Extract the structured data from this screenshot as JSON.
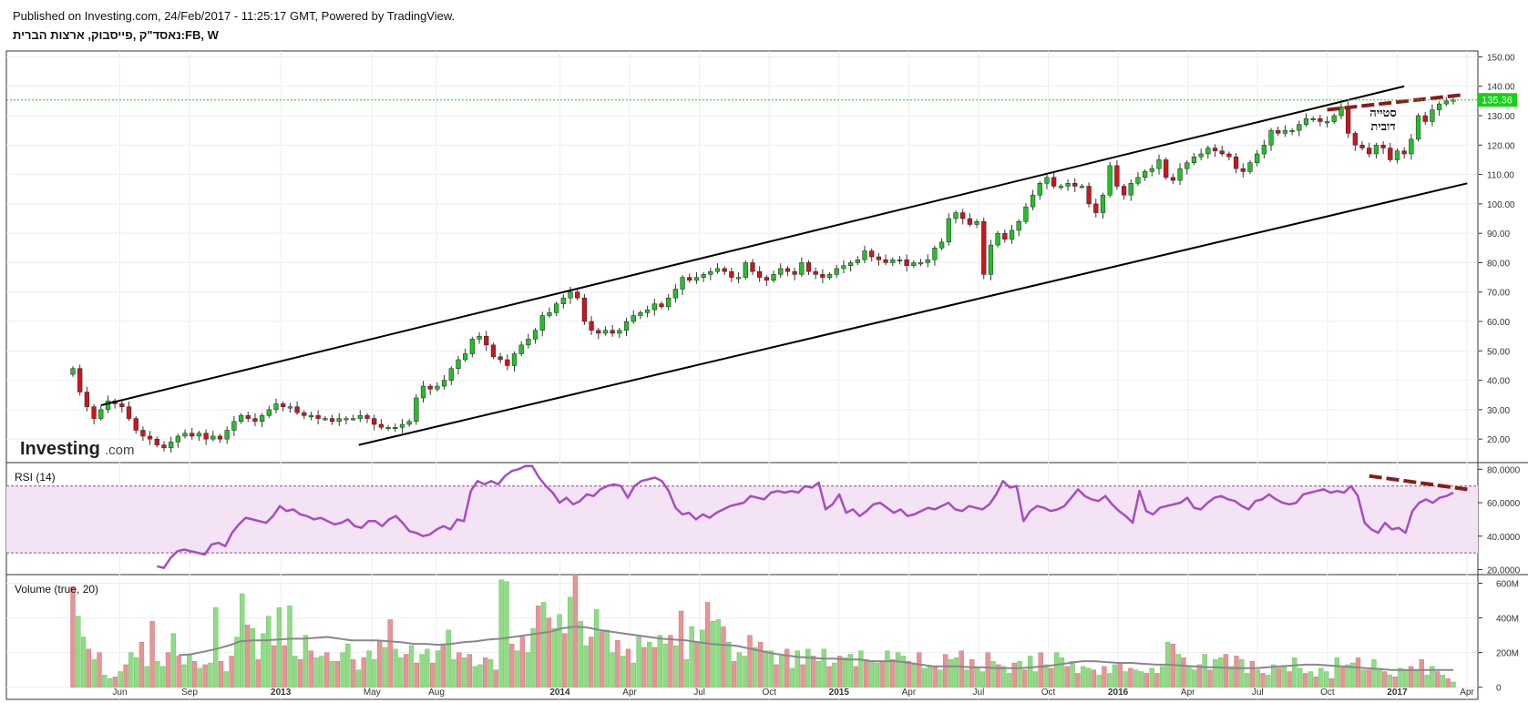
{
  "header": {
    "published": "Published on Investing.com, 24/Feb/2017 - 11:25:17 GMT, Powered by TradingView.",
    "symbol": "נאסד\"ק ,פייסבוק, ארצות הברית:FB, W"
  },
  "logo": {
    "brand": "Investing",
    "suffix": ".com"
  },
  "colors": {
    "up": "#22c12a",
    "down": "#d0141d",
    "wick": "#333333",
    "rsi": "#a64dbf",
    "rsi_band": "#f3e3f4",
    "vol_up": "#8fdc85",
    "vol_down": "#e49696",
    "vol_ma": "#888888",
    "price_tag": "#17d117",
    "divergence": "#8b1b1b"
  },
  "chart_data": {
    "type": "candlestick",
    "price_panel": {
      "ylim": [
        12,
        152
      ],
      "yticks": [
        "150.00",
        "140.00",
        "130.00",
        "120.00",
        "110.00",
        "100.00",
        "90.00",
        "80.00",
        "70.00",
        "60.00",
        "50.00",
        "40.00",
        "30.00",
        "20.00"
      ],
      "last_price": "135.36",
      "annotation_line1": "סטייה",
      "annotation_line2": "דובית",
      "closes": [
        44,
        36,
        31,
        27,
        30,
        33,
        32,
        31,
        27,
        23,
        21,
        20,
        18,
        17,
        19,
        21,
        22,
        21,
        22,
        20,
        21,
        20,
        23,
        26,
        28,
        27,
        26,
        28,
        30,
        32,
        31,
        31,
        29,
        28,
        28,
        27,
        27,
        26,
        27,
        27,
        27,
        28,
        27,
        25,
        24,
        24,
        24,
        25,
        26,
        34,
        38,
        37,
        38,
        40,
        44,
        47,
        49,
        54,
        55,
        52,
        48,
        47,
        45,
        49,
        52,
        54,
        57,
        62,
        63,
        66,
        68,
        70,
        68,
        60,
        57,
        56,
        57,
        56,
        57,
        60,
        62,
        63,
        64,
        66,
        65,
        68,
        71,
        75,
        74,
        75,
        76,
        77,
        78,
        77,
        75,
        75,
        80,
        77,
        75,
        74,
        76,
        78,
        77,
        76,
        80,
        77,
        76,
        75,
        76,
        78,
        79,
        80,
        81,
        84,
        82,
        81,
        80,
        81,
        81,
        79,
        80,
        80,
        81,
        85,
        87,
        95,
        97,
        95,
        93,
        94,
        76,
        86,
        90,
        88,
        91,
        94,
        99,
        103,
        107,
        109,
        106,
        106,
        107,
        106,
        106,
        100,
        97,
        103,
        113,
        106,
        103,
        107,
        109,
        111,
        112,
        115,
        109,
        108,
        112,
        114,
        116,
        117,
        119,
        118,
        117,
        116,
        112,
        111,
        114,
        117,
        120,
        125,
        124,
        125,
        125,
        127,
        129,
        129,
        128,
        128,
        130,
        133,
        124,
        120,
        119,
        117,
        120,
        119,
        115,
        118,
        117,
        122,
        130,
        128,
        132,
        134,
        135,
        135.36
      ],
      "channel_upper": [
        {
          "i": 4,
          "v": 31.5
        },
        {
          "i": 190,
          "v": 140
        }
      ],
      "channel_lower": [
        {
          "i": 46,
          "v": 18
        },
        {
          "i": 199,
          "v": 107
        }
      ],
      "divergence_line": [
        {
          "i": 179,
          "v": 132
        },
        {
          "i": 198,
          "v": 137
        }
      ]
    },
    "rsi_panel": {
      "title": "RSI (14)",
      "ylim": [
        17,
        84
      ],
      "yticks": [
        "80.0000",
        "60.0000",
        "40.0000",
        "20.0000"
      ],
      "band": [
        30,
        70
      ],
      "start_index": 12,
      "values": [
        22,
        21,
        27,
        31,
        32,
        31,
        30,
        29,
        35,
        36,
        34,
        42,
        47,
        51,
        50,
        49,
        48,
        52,
        58,
        55,
        56,
        53,
        52,
        50,
        51,
        49,
        47,
        48,
        50,
        46,
        45,
        49,
        49,
        46,
        50,
        52,
        48,
        43,
        42,
        40,
        41,
        44,
        46,
        44,
        50,
        49,
        67,
        73,
        71,
        73,
        71,
        76,
        79,
        80,
        82,
        82,
        75,
        70,
        66,
        60,
        63,
        59,
        61,
        65,
        64,
        68,
        70,
        71,
        70,
        63,
        70,
        73,
        74,
        75,
        73,
        67,
        57,
        53,
        54,
        50,
        53,
        51,
        54,
        56,
        58,
        59,
        60,
        64,
        63,
        62,
        66,
        67,
        66,
        67,
        66,
        70,
        69,
        72,
        56,
        59,
        65,
        54,
        56,
        52,
        55,
        59,
        60,
        57,
        54,
        56,
        52,
        53,
        55,
        57,
        56,
        58,
        60,
        56,
        55,
        58,
        57,
        56,
        59,
        65,
        73,
        69,
        70,
        49,
        55,
        58,
        57,
        55,
        56,
        58,
        63,
        68,
        64,
        62,
        61,
        64,
        59,
        55,
        52,
        48,
        67,
        55,
        53,
        57,
        58,
        59,
        60,
        63,
        57,
        56,
        60,
        63,
        64,
        62,
        61,
        58,
        56,
        61,
        62,
        65,
        62,
        60,
        59,
        60,
        65,
        66,
        67,
        68,
        66,
        67,
        66,
        70,
        64,
        48,
        44,
        42,
        48,
        44,
        45,
        42,
        55,
        60,
        62,
        60,
        63,
        64,
        66
      ],
      "divergence_line": [
        {
          "i": 185,
          "v": 76
        },
        {
          "i": 199,
          "v": 68
        }
      ]
    },
    "volume_panel": {
      "title": "Volume (true, 20)",
      "ylim": [
        -70,
        650
      ],
      "yticks": [
        "600M",
        "400M",
        "200M",
        "0"
      ],
      "ma_start_index": 20,
      "volumes": [
        580,
        410,
        290,
        220,
        160,
        200,
        70,
        50,
        60,
        90,
        130,
        200,
        170,
        260,
        120,
        380,
        150,
        120,
        200,
        310,
        180,
        130,
        190,
        150,
        110,
        130,
        140,
        460,
        150,
        90,
        180,
        290,
        540,
        360,
        340,
        160,
        310,
        410,
        240,
        460,
        240,
        470,
        180,
        160,
        300,
        210,
        170,
        180,
        200,
        150,
        150,
        200,
        250,
        160,
        100,
        170,
        210,
        160,
        270,
        230,
        390,
        220,
        170,
        190,
        240,
        140,
        190,
        220,
        140,
        210,
        250,
        330,
        160,
        200,
        170,
        190,
        120,
        130,
        170,
        160,
        100,
        620,
        610,
        250,
        210,
        290,
        200,
        340,
        470,
        490,
        400,
        340,
        420,
        310,
        520,
        650,
        380,
        240,
        290,
        450,
        320,
        330,
        200,
        270,
        180,
        220,
        140,
        300,
        230,
        260,
        230,
        300,
        250,
        300,
        240,
        440,
        160,
        350,
        260,
        330,
        490,
        380,
        390,
        350,
        260,
        150,
        200,
        180,
        300,
        230,
        260,
        210,
        210,
        130,
        180,
        220,
        110,
        210,
        130,
        220,
        180,
        150,
        220,
        120,
        140,
        180,
        170,
        190,
        120,
        210,
        160,
        150,
        140,
        150,
        210,
        160,
        200,
        180,
        150,
        130,
        200,
        110,
        120,
        120,
        100,
        190,
        160,
        170,
        210,
        100,
        160,
        110,
        90,
        200,
        150,
        130,
        120,
        80,
        140,
        150,
        100,
        180,
        90,
        200,
        130,
        110,
        200,
        170,
        120,
        150,
        80,
        120,
        110,
        100,
        70,
        120,
        80,
        130,
        140,
        90,
        110,
        100,
        90,
        80,
        110,
        80,
        120,
        260,
        250,
        190,
        170,
        120,
        100,
        130,
        190,
        100,
        160,
        170,
        190,
        120,
        180,
        160,
        80,
        150,
        100,
        80,
        70,
        130,
        110,
        120,
        90,
        170,
        110,
        80,
        90,
        60,
        110,
        90,
        50,
        170,
        120,
        130,
        140,
        170,
        100,
        100,
        160,
        110,
        90,
        70,
        60,
        110,
        100,
        120,
        100,
        160,
        70,
        120,
        90,
        70,
        50,
        30
      ],
      "ma_values": [
        185,
        190,
        205,
        220,
        240,
        265,
        270,
        270,
        275,
        280,
        280,
        285,
        290,
        280,
        270,
        270,
        270,
        265,
        260,
        250,
        250,
        245,
        250,
        260,
        265,
        275,
        280,
        290,
        300,
        310,
        320,
        340,
        350,
        345,
        330,
        320,
        310,
        300,
        290,
        280,
        275,
        270,
        260,
        250,
        245,
        240,
        225,
        210,
        195,
        185,
        175,
        170,
        165,
        165,
        160,
        160,
        150,
        150,
        150,
        140,
        130,
        120,
        120,
        120,
        115,
        115,
        110,
        110,
        110,
        115,
        120,
        130,
        140,
        150,
        150,
        145,
        140,
        140,
        135,
        130,
        130,
        125,
        120,
        115,
        115,
        110,
        110,
        110,
        115,
        120,
        125,
        130,
        130,
        125,
        120,
        115,
        110,
        105,
        100,
        100,
        100,
        100,
        100,
        100
      ]
    },
    "x_axis": {
      "ticks": [
        {
          "label": "Jun",
          "i": 5
        },
        {
          "label": "Sep",
          "i": 18
        },
        {
          "label": "2013",
          "i": 35
        },
        {
          "label": "May",
          "i": 52
        },
        {
          "label": "Aug",
          "i": 64
        },
        {
          "label": "2014",
          "i": 87
        },
        {
          "label": "Apr",
          "i": 100
        },
        {
          "label": "Jul",
          "i": 113
        },
        {
          "label": "Oct",
          "i": 126
        },
        {
          "label": "2015",
          "i": 139
        },
        {
          "label": "Apr",
          "i": 152
        },
        {
          "label": "Jul",
          "i": 165
        },
        {
          "label": "Oct",
          "i": 178
        },
        {
          "label": "2016",
          "i": 191
        },
        {
          "label": "Apr",
          "i": 204
        },
        {
          "label": "Jul",
          "i": 217
        },
        {
          "label": "Oct",
          "i": 230
        },
        {
          "label": "2017",
          "i": 243
        },
        {
          "label": "Apr",
          "i": 256
        }
      ]
    }
  }
}
